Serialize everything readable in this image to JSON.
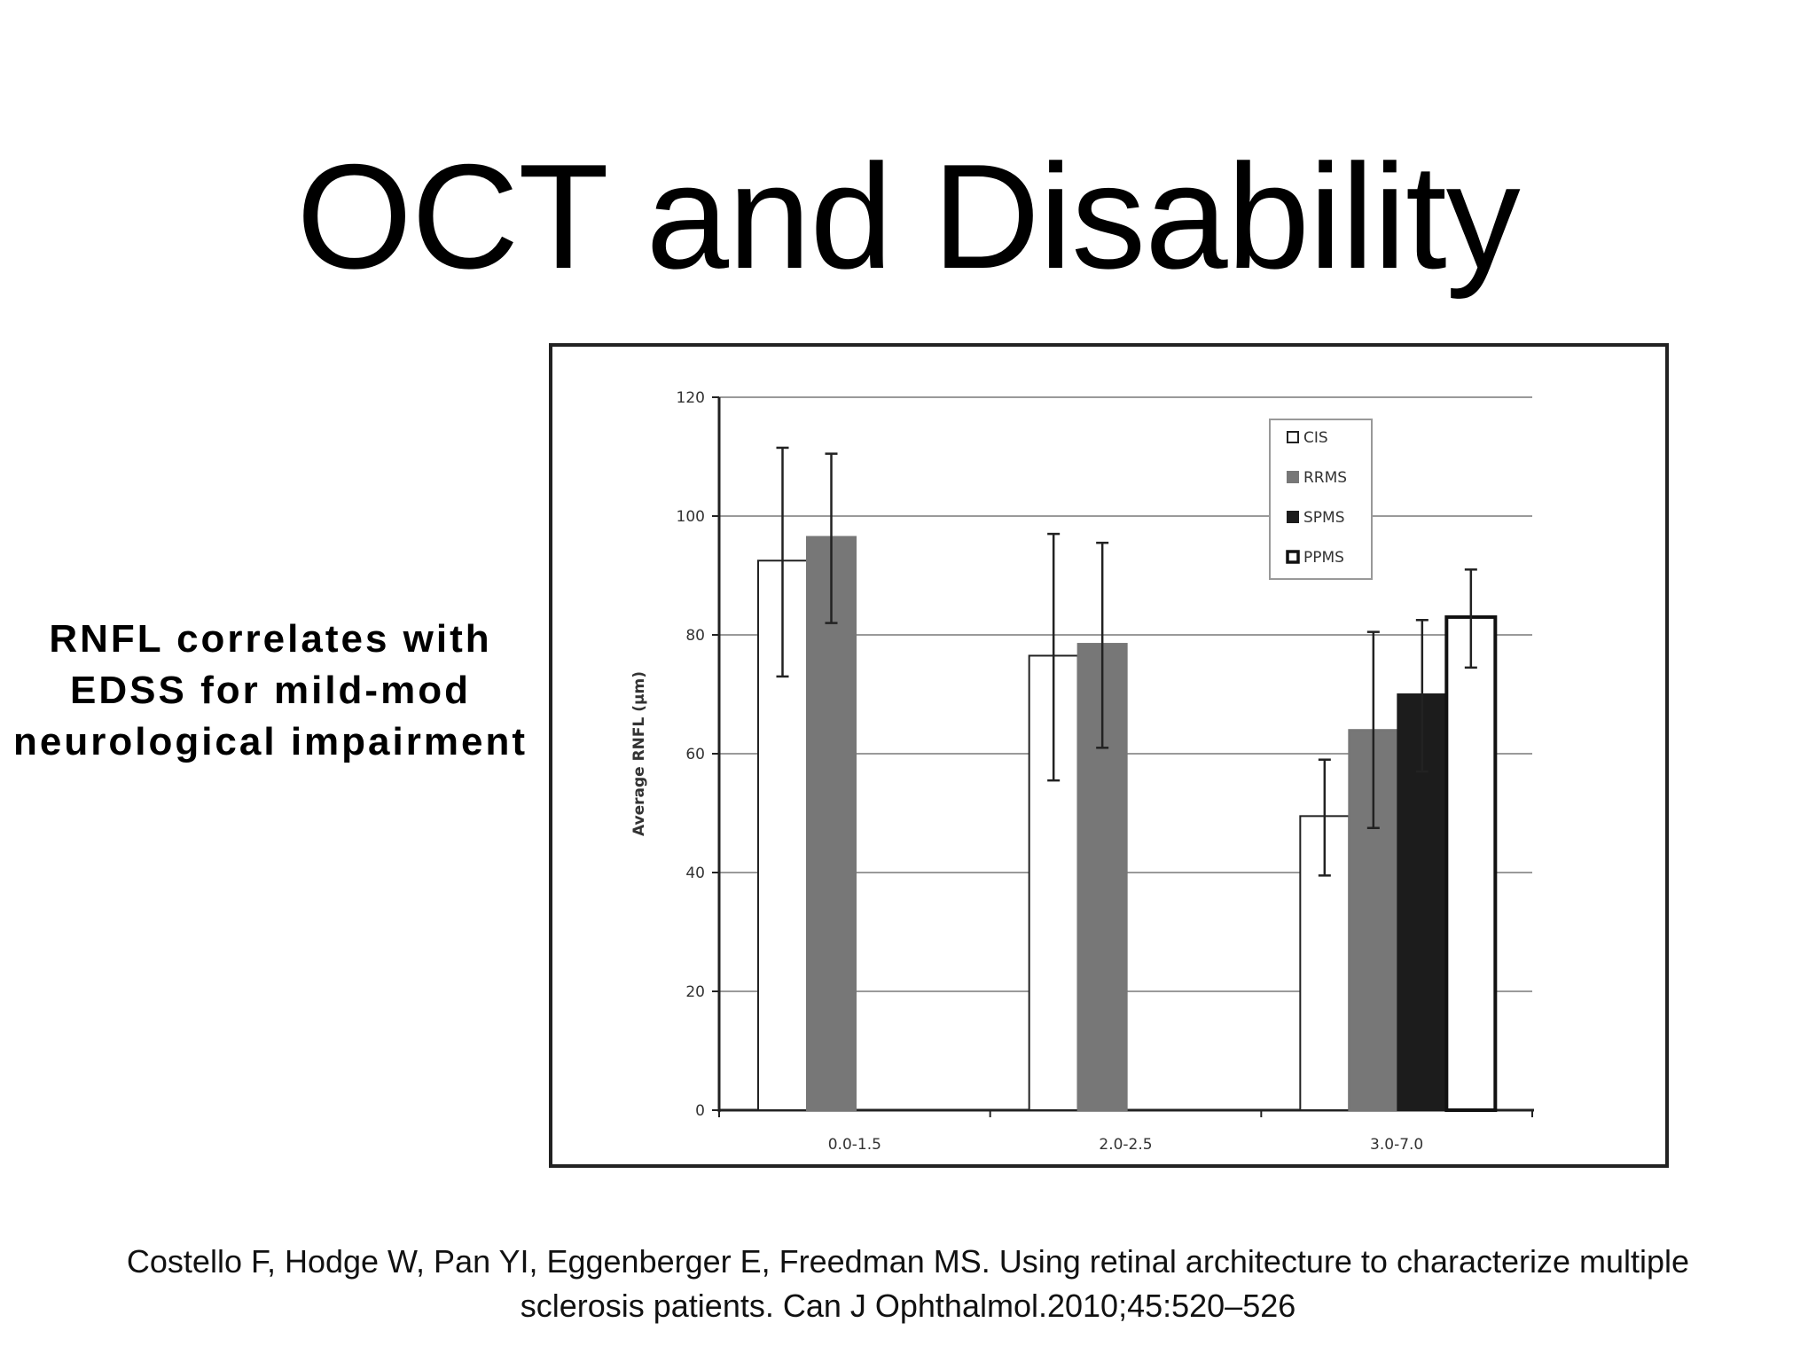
{
  "slide": {
    "title": "OCT and Disability",
    "side_note": [
      "RNFL correlates with",
      "EDSS for mild-mod",
      "neurological impairment"
    ],
    "citation": [
      "Costello F, Hodge W, Pan YI, Eggenberger E, Freedman MS. Using retinal architecture to characterize multiple",
      "sclerosis patients. Can J Ophthalmol.2010;45:520–526"
    ]
  },
  "chart_data": {
    "type": "bar",
    "title": "",
    "xlabel": "",
    "ylabel": "Average RNFL (µm)",
    "ylim": [
      0,
      120
    ],
    "yticks": [
      0,
      20,
      40,
      60,
      80,
      100,
      120
    ],
    "grid": true,
    "legend_position": "top-right",
    "categories": [
      "0.0-1.5",
      "2.0-2.5",
      "3.0-7.0"
    ],
    "series": [
      {
        "name": "CIS",
        "color": "#ffffff",
        "stroke": "#222222",
        "values": [
          92.5,
          76.5,
          49.5
        ],
        "err_low": [
          73,
          55.5,
          39.5
        ],
        "err_high": [
          111.5,
          97,
          59
        ]
      },
      {
        "name": "RRMS",
        "color": "#777777",
        "stroke": "#777777",
        "values": [
          96.5,
          78.5,
          64
        ],
        "err_low": [
          82,
          61,
          47.5
        ],
        "err_high": [
          110.5,
          95.5,
          80.5
        ]
      },
      {
        "name": "SPMS",
        "color": "#1c1c1c",
        "stroke": "#1c1c1c",
        "values": [
          null,
          null,
          70
        ],
        "err_low": [
          null,
          null,
          57
        ],
        "err_high": [
          null,
          null,
          82.5
        ]
      },
      {
        "name": "PPMS",
        "color": "#ffffff",
        "stroke": "#111111",
        "stroke_heavy": true,
        "values": [
          null,
          null,
          83
        ],
        "err_low": [
          null,
          null,
          74.5
        ],
        "err_high": [
          null,
          null,
          91
        ]
      }
    ]
  }
}
